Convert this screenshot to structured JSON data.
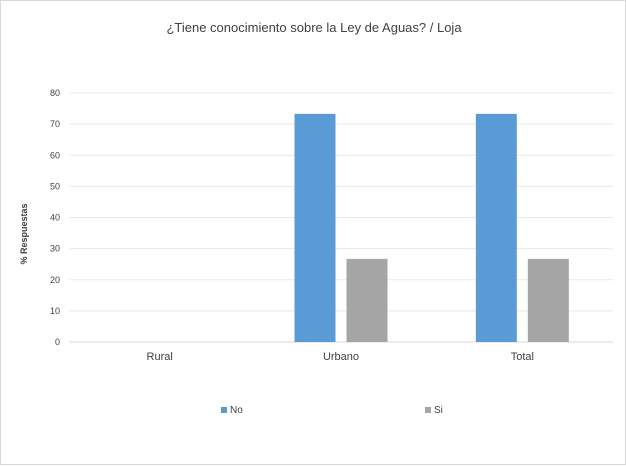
{
  "chart_data": {
    "type": "bar",
    "title": "¿Tiene conocimiento sobre la Ley de Aguas? / Loja",
    "xlabel": "",
    "ylabel": "% Respuestas",
    "categories": [
      "Rural",
      "Urbano",
      "Total"
    ],
    "series": [
      {
        "name": "No",
        "values": [
          0,
          73.3,
          73.3
        ],
        "color": "#5b9bd5"
      },
      {
        "name": "Si",
        "values": [
          0,
          26.7,
          26.7
        ],
        "color": "#a5a5a5"
      }
    ],
    "ylim": [
      0,
      80
    ],
    "yticks": [
      "0",
      "10",
      "20",
      "30",
      "40",
      "50",
      "60",
      "70",
      "80"
    ],
    "grid": true,
    "legend_position": "bottom"
  }
}
